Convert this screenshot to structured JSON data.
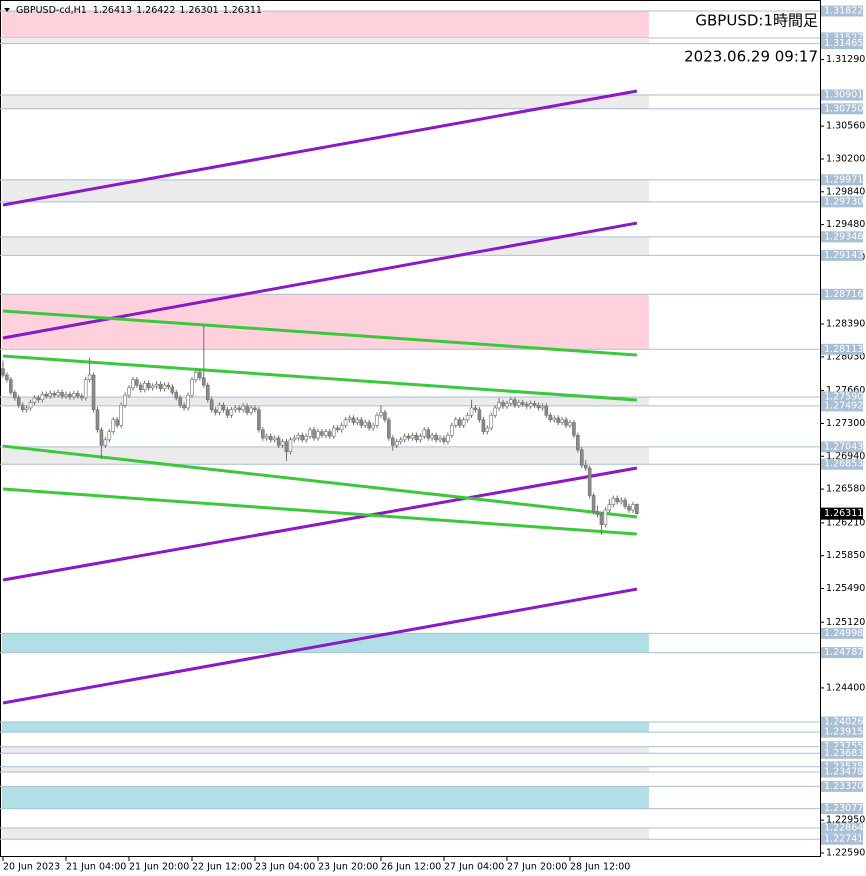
{
  "chart_data": {
    "type": "candlestick",
    "symbol": "GBPUSD-cd,H1",
    "title": "GBPUSD:1時間足",
    "subtitle": "2023.06.29 09:17",
    "up_color": "#ffffff",
    "down_color": "#8a8a8a",
    "wick_color": "#707070",
    "grid": false,
    "xlim": [
      -0.76,
      207.5
    ],
    "ylim": [
      1.22546,
      1.31943
    ],
    "xticks": [
      {
        "value": 0,
        "label": "20 Jun 2023"
      },
      {
        "value": 16,
        "label": "21 Jun 04:00"
      },
      {
        "value": 32,
        "label": "21 Jun 20:00"
      },
      {
        "value": 48,
        "label": "22 Jun 12:00"
      },
      {
        "value": 64,
        "label": "23 Jun 04:00"
      },
      {
        "value": 80,
        "label": "23 Jun 20:00"
      },
      {
        "value": 96,
        "label": "26 Jun 12:00"
      },
      {
        "value": 112,
        "label": "27 Jun 04:00"
      },
      {
        "value": 128,
        "label": "27 Jun 20:00"
      },
      {
        "value": 144,
        "label": "28 Jun 12:00"
      }
    ],
    "yticks": [
      {
        "value": 1.3129,
        "label": "1.31290"
      },
      {
        "value": 1.3056,
        "label": "1.30560"
      },
      {
        "value": 1.302,
        "label": "1.30200"
      },
      {
        "value": 1.2984,
        "label": "1.29840"
      },
      {
        "value": 1.2948,
        "label": "1.29480"
      },
      {
        "value": 1.2912,
        "label": "1.29120"
      },
      {
        "value": 1.2839,
        "label": "1.28390"
      },
      {
        "value": 1.2803,
        "label": "1.28030"
      },
      {
        "value": 1.2766,
        "label": "1.27660"
      },
      {
        "value": 1.273,
        "label": "1.27300"
      },
      {
        "value": 1.2694,
        "label": "1.26940"
      },
      {
        "value": 1.2658,
        "label": "1.26580"
      },
      {
        "value": 1.2621,
        "label": "1.26210"
      },
      {
        "value": 1.2585,
        "label": "1.25850"
      },
      {
        "value": 1.2549,
        "label": "1.25490"
      },
      {
        "value": 1.2512,
        "label": "1.25120"
      },
      {
        "value": 1.244,
        "label": "1.24400"
      },
      {
        "value": 1.2295,
        "label": "1.22950"
      },
      {
        "value": 1.2259,
        "label": "1.22590"
      }
    ],
    "zones": [
      {
        "top": 1.31822,
        "bottom": 1.31527,
        "color": "#ffd1dc"
      },
      {
        "top": 1.31527,
        "bottom": 1.31465,
        "color": "#ebebeb"
      },
      {
        "top": 1.30901,
        "bottom": {
          "value": 1.3075,
          "label": "1.30750"
        },
        "color": "#ebebeb"
      },
      {
        "top": 1.29971,
        "bottom": {
          "value": 1.2973,
          "label": "1.29730"
        },
        "color": "#ebebeb"
      },
      {
        "top": 1.29346,
        "bottom": 1.29143,
        "color": "#ebebeb"
      },
      {
        "top": 1.28716,
        "bottom": 1.28113,
        "color": "#ffd1dc"
      },
      {
        "top": {
          "value": 1.2759,
          "label": "1.27590"
        },
        "bottom": 1.27492,
        "color": "#ebebeb"
      },
      {
        "top": 1.27043,
        "bottom": 1.26853,
        "color": "#ebebeb"
      },
      {
        "top": 1.24998,
        "bottom": 1.24787,
        "color": "#b0dfe5"
      },
      {
        "top": 1.24026,
        "bottom": 1.23915,
        "color": "#b0dfe5"
      },
      {
        "top": 1.23755,
        "bottom": 1.23683,
        "color": "#ebebeb"
      },
      {
        "top": 1.23535,
        "bottom": 1.23478,
        "color": "#ebebeb"
      },
      {
        "top": {
          "value": 1.2332,
          "label": "1.23320"
        },
        "bottom": 1.23077,
        "color": "#b0dfe5"
      },
      {
        "top": 1.22864,
        "bottom": 1.22741,
        "color": "#ebebeb"
      }
    ],
    "trendlines": [
      {
        "start": 1.29695,
        "end": 1.30945,
        "color": "#8a19c8"
      },
      {
        "start": 1.28237,
        "end": 1.29497,
        "color": "#8a19c8"
      },
      {
        "start": 1.25583,
        "end": 1.26811,
        "color": "#8a19c8"
      },
      {
        "start": 1.24235,
        "end": 1.25484,
        "color": "#8a19c8"
      },
      {
        "start": 1.28533,
        "end": 1.2805,
        "color": "#3cc83c"
      },
      {
        "start": 1.28039,
        "end": 1.27557,
        "color": "#3cc83c"
      },
      {
        "start": 1.27052,
        "end": 1.26274,
        "color": "#3cc83c"
      },
      {
        "start": 1.26581,
        "end": 1.26087,
        "color": "#3cc83c"
      }
    ],
    "ohlc": [
      [
        1.279,
        1.2799,
        1.278,
        1.2783
      ],
      [
        1.2783,
        1.2786,
        1.2775,
        1.2778
      ],
      [
        1.2778,
        1.2781,
        1.2761,
        1.2764
      ],
      [
        1.2764,
        1.2767,
        1.2755,
        1.2758
      ],
      [
        1.2758,
        1.2761,
        1.2747,
        1.275
      ],
      [
        1.275,
        1.2753,
        1.2742,
        1.2745
      ],
      [
        1.2745,
        1.275,
        1.2742,
        1.2747
      ],
      [
        1.2747,
        1.2756,
        1.2744,
        1.2753
      ],
      [
        1.2753,
        1.2761,
        1.275,
        1.2758
      ],
      [
        1.2758,
        1.2761,
        1.2753,
        1.2756
      ],
      [
        1.2756,
        1.2765,
        1.2753,
        1.2762
      ],
      [
        1.2762,
        1.2765,
        1.2757,
        1.276
      ],
      [
        1.276,
        1.2766,
        1.2757,
        1.2763
      ],
      [
        1.2763,
        1.2766,
        1.2758,
        1.2761
      ],
      [
        1.2761,
        1.2767,
        1.2758,
        1.2764
      ],
      [
        1.2764,
        1.2767,
        1.2757,
        1.276
      ],
      [
        1.276,
        1.2765,
        1.2757,
        1.2762
      ],
      [
        1.2762,
        1.2765,
        1.2756,
        1.2759
      ],
      [
        1.2759,
        1.2766,
        1.2756,
        1.2763
      ],
      [
        1.2763,
        1.2766,
        1.2757,
        1.276
      ],
      [
        1.276,
        1.2763,
        1.2755,
        1.2758
      ],
      [
        1.2758,
        1.2781,
        1.2755,
        1.2778
      ],
      [
        1.2778,
        1.2802,
        1.2775,
        1.2783
      ],
      [
        1.2783,
        1.2786,
        1.2742,
        1.2745
      ],
      [
        1.2745,
        1.2748,
        1.272,
        1.2723
      ],
      [
        1.2723,
        1.2726,
        1.2691,
        1.2706
      ],
      [
        1.2706,
        1.2715,
        1.2703,
        1.2712
      ],
      [
        1.2712,
        1.2724,
        1.2709,
        1.2721
      ],
      [
        1.2721,
        1.2737,
        1.2718,
        1.2734
      ],
      [
        1.2734,
        1.2737,
        1.2725,
        1.2728
      ],
      [
        1.2728,
        1.2753,
        1.2725,
        1.275
      ],
      [
        1.275,
        1.2764,
        1.2747,
        1.2761
      ],
      [
        1.2761,
        1.2772,
        1.2758,
        1.2769
      ],
      [
        1.2769,
        1.2781,
        1.2766,
        1.2778
      ],
      [
        1.2778,
        1.2781,
        1.2769,
        1.2772
      ],
      [
        1.2772,
        1.2775,
        1.2764,
        1.2767
      ],
      [
        1.2767,
        1.2777,
        1.2764,
        1.2774
      ],
      [
        1.2774,
        1.2777,
        1.2766,
        1.2769
      ],
      [
        1.2769,
        1.2774,
        1.2766,
        1.2771
      ],
      [
        1.2771,
        1.2776,
        1.2768,
        1.2773
      ],
      [
        1.2773,
        1.2776,
        1.2765,
        1.2768
      ],
      [
        1.2768,
        1.2775,
        1.2765,
        1.2772
      ],
      [
        1.2772,
        1.2775,
        1.2767,
        1.277
      ],
      [
        1.277,
        1.2773,
        1.2761,
        1.2764
      ],
      [
        1.2764,
        1.2767,
        1.2755,
        1.2758
      ],
      [
        1.2758,
        1.2761,
        1.2747,
        1.275
      ],
      [
        1.275,
        1.2753,
        1.2744,
        1.2747
      ],
      [
        1.2747,
        1.2764,
        1.2744,
        1.2761
      ],
      [
        1.2761,
        1.2781,
        1.2758,
        1.2778
      ],
      [
        1.2778,
        1.2789,
        1.2775,
        1.2786
      ],
      [
        1.2786,
        1.2789,
        1.2777,
        1.278
      ],
      [
        1.278,
        1.2838,
        1.2769,
        1.2772
      ],
      [
        1.2772,
        1.2775,
        1.2753,
        1.2756
      ],
      [
        1.2756,
        1.2759,
        1.2742,
        1.2745
      ],
      [
        1.2745,
        1.2748,
        1.2739,
        1.2742
      ],
      [
        1.2742,
        1.2753,
        1.2739,
        1.275
      ],
      [
        1.275,
        1.2753,
        1.2742,
        1.2745
      ],
      [
        1.2745,
        1.2748,
        1.2736,
        1.2739
      ],
      [
        1.2739,
        1.2748,
        1.2736,
        1.2745
      ],
      [
        1.2745,
        1.275,
        1.2742,
        1.2747
      ],
      [
        1.2747,
        1.275,
        1.2742,
        1.2745
      ],
      [
        1.2745,
        1.2752,
        1.2742,
        1.2749
      ],
      [
        1.2749,
        1.2752,
        1.2739,
        1.2742
      ],
      [
        1.2742,
        1.275,
        1.2739,
        1.2747
      ],
      [
        1.2747,
        1.275,
        1.2742,
        1.2745
      ],
      [
        1.2745,
        1.2748,
        1.272,
        1.2723
      ],
      [
        1.2723,
        1.2726,
        1.2711,
        1.2714
      ],
      [
        1.2714,
        1.2719,
        1.2711,
        1.2716
      ],
      [
        1.2716,
        1.2719,
        1.2709,
        1.2712
      ],
      [
        1.2712,
        1.2717,
        1.2709,
        1.2714
      ],
      [
        1.2714,
        1.2717,
        1.2703,
        1.2706
      ],
      [
        1.2706,
        1.2713,
        1.2703,
        1.271
      ],
      [
        1.271,
        1.2713,
        1.2689,
        1.2699
      ],
      [
        1.2699,
        1.2715,
        1.2696,
        1.2712
      ],
      [
        1.2712,
        1.2717,
        1.2709,
        1.2714
      ],
      [
        1.2714,
        1.272,
        1.2711,
        1.2717
      ],
      [
        1.2717,
        1.272,
        1.2709,
        1.2712
      ],
      [
        1.2712,
        1.2719,
        1.2709,
        1.2716
      ],
      [
        1.2716,
        1.2726,
        1.2713,
        1.2723
      ],
      [
        1.2723,
        1.2726,
        1.2711,
        1.2714
      ],
      [
        1.2714,
        1.2724,
        1.2711,
        1.2721
      ],
      [
        1.2721,
        1.2724,
        1.2714,
        1.2717
      ],
      [
        1.2717,
        1.2724,
        1.2714,
        1.2721
      ],
      [
        1.2721,
        1.2724,
        1.2713,
        1.2716
      ],
      [
        1.2716,
        1.2728,
        1.2713,
        1.2725
      ],
      [
        1.2725,
        1.2728,
        1.272,
        1.2723
      ],
      [
        1.2723,
        1.2731,
        1.272,
        1.2728
      ],
      [
        1.2728,
        1.2737,
        1.2725,
        1.2734
      ],
      [
        1.2734,
        1.2739,
        1.2731,
        1.2736
      ],
      [
        1.2736,
        1.2739,
        1.2728,
        1.2731
      ],
      [
        1.2731,
        1.2737,
        1.2728,
        1.2734
      ],
      [
        1.2734,
        1.2737,
        1.2725,
        1.2728
      ],
      [
        1.2728,
        1.2734,
        1.2725,
        1.2731
      ],
      [
        1.2731,
        1.2734,
        1.2722,
        1.2725
      ],
      [
        1.2725,
        1.2731,
        1.2722,
        1.2728
      ],
      [
        1.2728,
        1.2742,
        1.2725,
        1.2739
      ],
      [
        1.2739,
        1.275,
        1.2736,
        1.2742
      ],
      [
        1.2742,
        1.2745,
        1.2731,
        1.2734
      ],
      [
        1.2734,
        1.2737,
        1.2711,
        1.2714
      ],
      [
        1.2714,
        1.2717,
        1.27,
        1.2706
      ],
      [
        1.2706,
        1.2713,
        1.2703,
        1.271
      ],
      [
        1.271,
        1.2715,
        1.2707,
        1.2712
      ],
      [
        1.2712,
        1.2719,
        1.2709,
        1.2716
      ],
      [
        1.2716,
        1.2719,
        1.2711,
        1.2714
      ],
      [
        1.2714,
        1.272,
        1.2711,
        1.2717
      ],
      [
        1.2717,
        1.272,
        1.2709,
        1.2712
      ],
      [
        1.2712,
        1.2719,
        1.2709,
        1.2716
      ],
      [
        1.2716,
        1.2726,
        1.2713,
        1.2723
      ],
      [
        1.2723,
        1.2726,
        1.2711,
        1.2714
      ],
      [
        1.2714,
        1.272,
        1.2711,
        1.2717
      ],
      [
        1.2717,
        1.272,
        1.2709,
        1.2712
      ],
      [
        1.2712,
        1.2717,
        1.2709,
        1.2714
      ],
      [
        1.2714,
        1.2717,
        1.2707,
        1.271
      ],
      [
        1.271,
        1.272,
        1.2707,
        1.2717
      ],
      [
        1.2717,
        1.2731,
        1.2714,
        1.2728
      ],
      [
        1.2728,
        1.2737,
        1.2725,
        1.2734
      ],
      [
        1.2734,
        1.2737,
        1.2725,
        1.2728
      ],
      [
        1.2728,
        1.2737,
        1.2725,
        1.2734
      ],
      [
        1.2734,
        1.2742,
        1.2731,
        1.2739
      ],
      [
        1.2739,
        1.2756,
        1.2736,
        1.2747
      ],
      [
        1.2747,
        1.275,
        1.2742,
        1.2745
      ],
      [
        1.2745,
        1.2748,
        1.2731,
        1.2734
      ],
      [
        1.2734,
        1.2737,
        1.2718,
        1.2721
      ],
      [
        1.2721,
        1.2728,
        1.2718,
        1.2725
      ],
      [
        1.2725,
        1.2742,
        1.2722,
        1.2739
      ],
      [
        1.2739,
        1.275,
        1.2736,
        1.2747
      ],
      [
        1.2747,
        1.2758,
        1.2744,
        1.2753
      ],
      [
        1.2753,
        1.2756,
        1.2746,
        1.2749
      ],
      [
        1.2749,
        1.2755,
        1.2746,
        1.2752
      ],
      [
        1.2752,
        1.2759,
        1.2749,
        1.2756
      ],
      [
        1.2756,
        1.2759,
        1.2747,
        1.275
      ],
      [
        1.275,
        1.2756,
        1.2747,
        1.2753
      ],
      [
        1.2753,
        1.2756,
        1.2748,
        1.2751
      ],
      [
        1.2751,
        1.2754,
        1.2746,
        1.2749
      ],
      [
        1.2749,
        1.2755,
        1.2746,
        1.2752
      ],
      [
        1.2752,
        1.2755,
        1.2747,
        1.275
      ],
      [
        1.275,
        1.2753,
        1.2744,
        1.2747
      ],
      [
        1.2747,
        1.2752,
        1.2744,
        1.2749
      ],
      [
        1.2749,
        1.2752,
        1.2736,
        1.2739
      ],
      [
        1.2739,
        1.2742,
        1.2731,
        1.2734
      ],
      [
        1.2734,
        1.2739,
        1.2731,
        1.2736
      ],
      [
        1.2736,
        1.2739,
        1.2728,
        1.2731
      ],
      [
        1.2731,
        1.2737,
        1.2728,
        1.2734
      ],
      [
        1.2734,
        1.2737,
        1.2725,
        1.2728
      ],
      [
        1.2728,
        1.2734,
        1.2725,
        1.2731
      ],
      [
        1.2731,
        1.2734,
        1.2714,
        1.2717
      ],
      [
        1.2717,
        1.272,
        1.2698,
        1.2701
      ],
      [
        1.2701,
        1.2704,
        1.2681,
        1.2684
      ],
      [
        1.2684,
        1.269,
        1.2678,
        1.2681
      ],
      [
        1.2681,
        1.2684,
        1.2648,
        1.2651
      ],
      [
        1.2651,
        1.2654,
        1.263,
        1.2633
      ],
      [
        1.2633,
        1.264,
        1.2627,
        1.263
      ],
      [
        1.263,
        1.2633,
        1.2608,
        1.2619
      ],
      [
        1.2619,
        1.2638,
        1.2616,
        1.2635
      ],
      [
        1.2635,
        1.2647,
        1.2632,
        1.2641
      ],
      [
        1.2641,
        1.2651,
        1.2638,
        1.2648
      ],
      [
        1.2648,
        1.2651,
        1.2641,
        1.2644
      ],
      [
        1.2644,
        1.2649,
        1.2641,
        1.2646
      ],
      [
        1.2646,
        1.2649,
        1.2636,
        1.2639
      ],
      [
        1.2639,
        1.2642,
        1.2632,
        1.2635
      ],
      [
        1.2635,
        1.2644,
        1.2632,
        1.2641
      ],
      [
        1.26413,
        1.26422,
        1.26301,
        1.26311
      ]
    ]
  }
}
